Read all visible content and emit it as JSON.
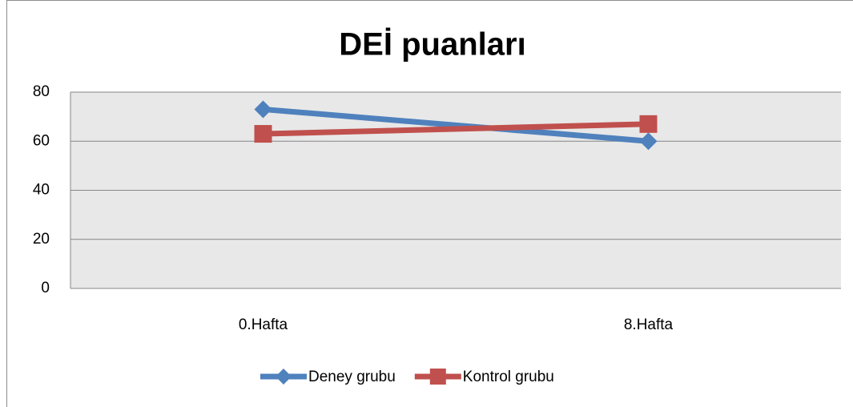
{
  "chart_data": {
    "type": "line",
    "title": "DEİ puanları",
    "categories": [
      "0.Hafta",
      "8.Hafta"
    ],
    "series": [
      {
        "name": "Deney grubu",
        "color": "#4f81bd",
        "marker": "diamond",
        "values": [
          73,
          60
        ]
      },
      {
        "name": "Kontrol grubu",
        "color": "#c0504d",
        "marker": "square",
        "values": [
          63,
          67
        ]
      }
    ],
    "ylim": [
      0,
      80
    ],
    "yticks": [
      0,
      20,
      40,
      60,
      80
    ],
    "grid": true,
    "legend": "bottom"
  }
}
